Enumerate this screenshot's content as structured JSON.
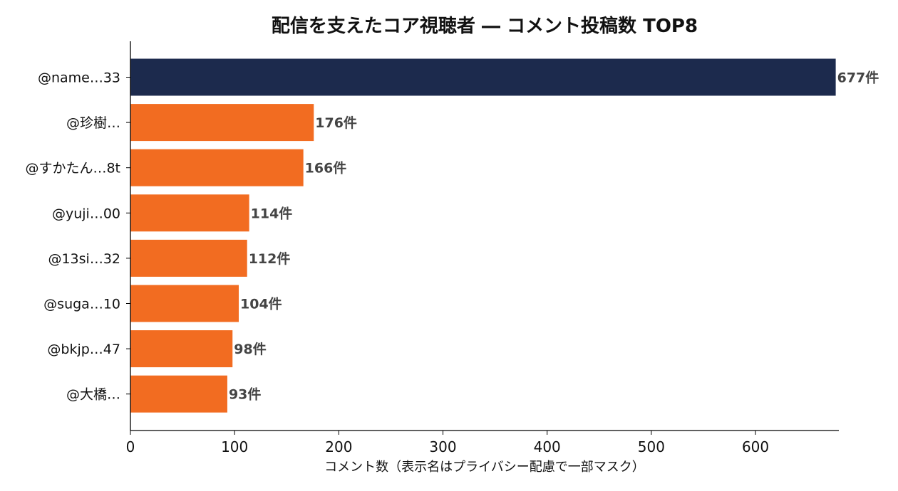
{
  "chart_data": {
    "type": "bar",
    "orientation": "horizontal",
    "title": "配信を支えたコア視聴者 ― コメント投稿数 TOP8",
    "xlabel": "コメント数（表示名はプライバシー配慮で一部マスク）",
    "ylabel": "",
    "xlim": [
      0,
      680
    ],
    "xticks": [
      0,
      100,
      200,
      300,
      400,
      500,
      600
    ],
    "categories": [
      "@name…33",
      "@珍樹…",
      "@すかたん…8t",
      "@yuji…00",
      "@13si…32",
      "@suga…10",
      "@bkjp…47",
      "@大橋…"
    ],
    "values": [
      677,
      176,
      166,
      114,
      112,
      104,
      98,
      93
    ],
    "data_labels": [
      "677件",
      "176件",
      "166件",
      "114件",
      "112件",
      "104件",
      "98件",
      "93件"
    ],
    "colors": {
      "highlight": "#1c2a4d",
      "bar": "#f26c21",
      "label": "#444444",
      "axis": "#000000"
    },
    "grid": false
  }
}
